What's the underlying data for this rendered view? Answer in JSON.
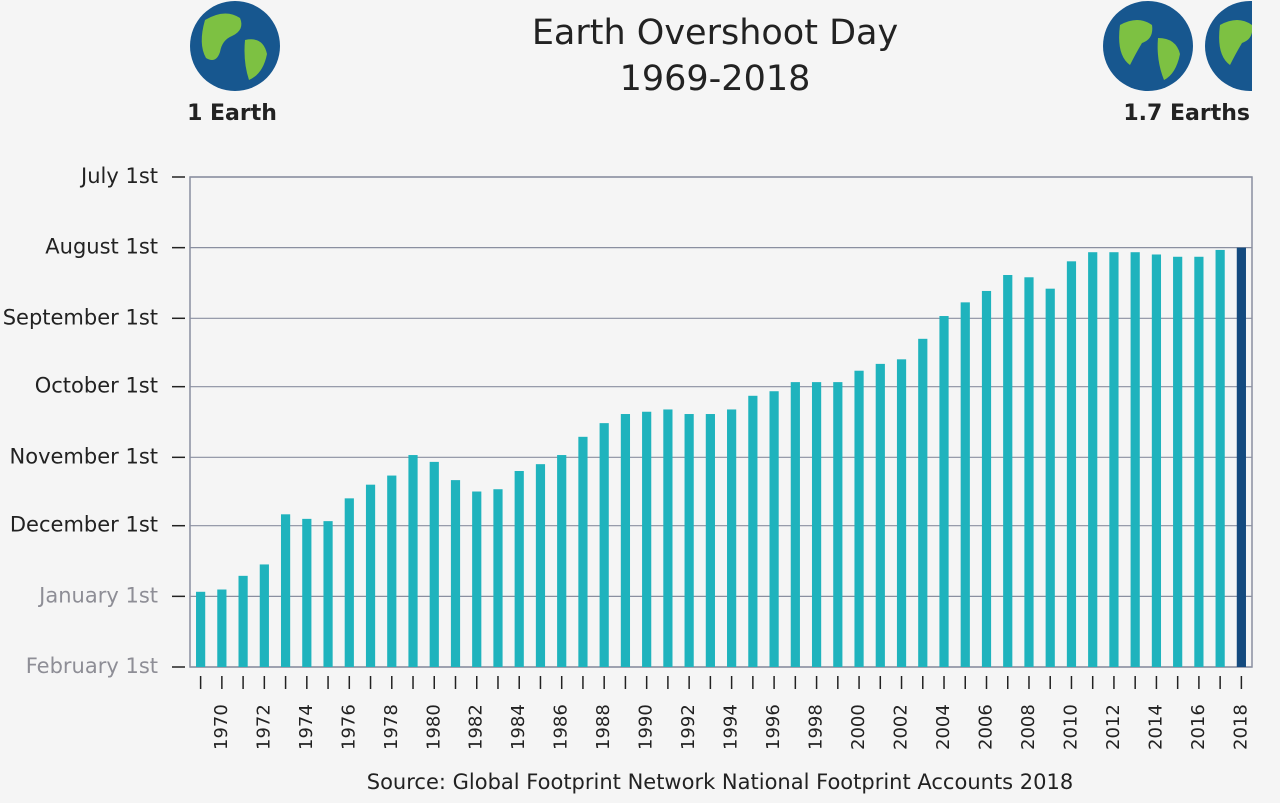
{
  "chart_data": {
    "type": "bar",
    "title": "Earth Overshoot Day",
    "subtitle": "1969-2018",
    "left_badge": "1 Earth",
    "right_badge": "1.7 Earths",
    "source": "Source: Global Footprint Network National Footprint Accounts 2018",
    "categories": [
      null,
      "1970",
      null,
      "1972",
      null,
      "1974",
      null,
      "1976",
      null,
      "1978",
      null,
      "1980",
      null,
      "1982",
      null,
      "1984",
      null,
      "1986",
      null,
      "1988",
      null,
      "1990",
      null,
      "1992",
      null,
      "1994",
      null,
      "1996",
      null,
      "1998",
      null,
      "2000",
      null,
      "2002",
      null,
      "2004",
      null,
      "2006",
      null,
      "2008",
      null,
      "2010",
      null,
      "2012",
      null,
      "2014",
      null,
      "2016",
      null,
      "2018"
    ],
    "values": [
      364,
      363,
      357,
      352,
      330,
      332,
      333,
      323,
      317,
      313,
      304,
      307,
      315,
      320,
      319,
      311,
      308,
      304,
      296,
      290,
      286,
      285,
      284,
      286,
      286,
      284,
      278,
      276,
      272,
      272,
      272,
      267,
      264,
      262,
      253,
      243,
      237,
      232,
      225,
      226,
      231,
      219,
      215,
      215,
      215,
      216,
      217,
      217,
      214,
      213
    ],
    "colors": [
      "#1fb3bd",
      "#1fb3bd",
      "#1fb3bd",
      "#1fb3bd",
      "#1fb3bd",
      "#1fb3bd",
      "#1fb3bd",
      "#1fb3bd",
      "#1fb3bd",
      "#1fb3bd",
      "#1fb3bd",
      "#1fb3bd",
      "#1fb3bd",
      "#1fb3bd",
      "#1fb3bd",
      "#1fb3bd",
      "#1fb3bd",
      "#1fb3bd",
      "#1fb3bd",
      "#1fb3bd",
      "#1fb3bd",
      "#1fb3bd",
      "#1fb3bd",
      "#1fb3bd",
      "#1fb3bd",
      "#1fb3bd",
      "#1fb3bd",
      "#1fb3bd",
      "#1fb3bd",
      "#1fb3bd",
      "#1fb3bd",
      "#1fb3bd",
      "#1fb3bd",
      "#1fb3bd",
      "#1fb3bd",
      "#1fb3bd",
      "#1fb3bd",
      "#1fb3bd",
      "#1fb3bd",
      "#1fb3bd",
      "#1fb3bd",
      "#1fb3bd",
      "#1fb3bd",
      "#1fb3bd",
      "#1fb3bd",
      "#1fb3bd",
      "#1fb3bd",
      "#1fb3bd",
      "#1fb3bd",
      "#144a7e"
    ],
    "ylim": [
      397,
      182
    ],
    "yticks": [
      {
        "value": 182,
        "label": "July 1st"
      },
      {
        "value": 213,
        "label": "August 1st"
      },
      {
        "value": 244,
        "label": "September 1st"
      },
      {
        "value": 274,
        "label": "October 1st"
      },
      {
        "value": 305,
        "label": "November 1st"
      },
      {
        "value": 335,
        "label": "December 1st"
      },
      {
        "value": 366,
        "label": "January 1st"
      },
      {
        "value": 397,
        "label": "February 1st"
      }
    ],
    "grid": true
  }
}
